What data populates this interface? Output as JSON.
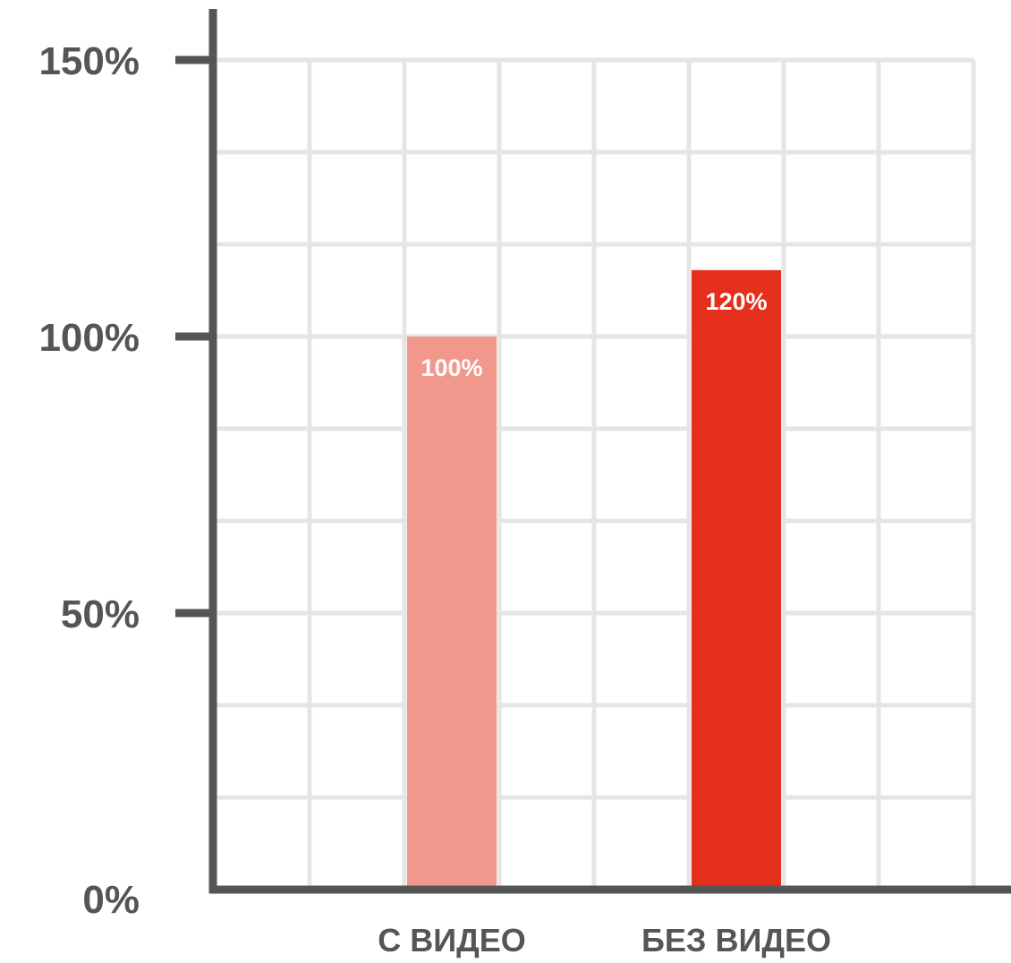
{
  "chart_data": {
    "type": "bar",
    "categories": [
      "С ВИДЕО",
      "БЕЗ ВИДЕО"
    ],
    "values": [
      100,
      120
    ],
    "data_labels": [
      "100%",
      "120%"
    ],
    "bar_colors": [
      "#f1978b",
      "#e32f1b"
    ],
    "title": "",
    "xlabel": "",
    "ylabel": "",
    "ylim": [
      0,
      150
    ],
    "y_ticks": [
      {
        "value": 0,
        "label": "0%"
      },
      {
        "value": 50,
        "label": "50%"
      },
      {
        "value": 100,
        "label": "100%"
      },
      {
        "value": 150,
        "label": "150%"
      }
    ],
    "grid": true,
    "axis_color": "#555555",
    "grid_color": "#e5e5e5"
  }
}
